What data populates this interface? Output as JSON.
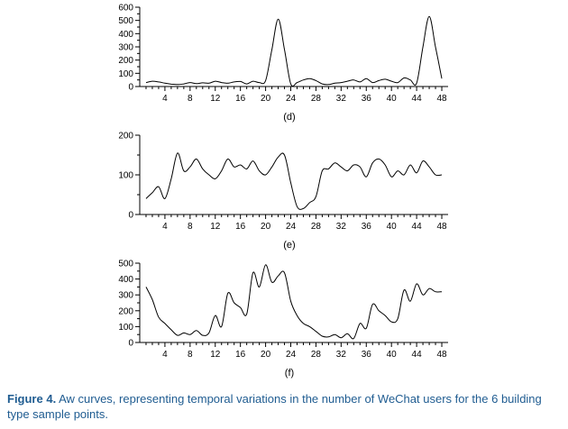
{
  "chart_data": [
    {
      "type": "line",
      "panel_label": "(d)",
      "x_ticks": [
        4,
        8,
        12,
        16,
        20,
        24,
        28,
        32,
        36,
        40,
        44,
        48
      ],
      "y_ticks": [
        0,
        100,
        200,
        300,
        400,
        500,
        600
      ],
      "xlim": [
        0,
        49
      ],
      "ylim": [
        0,
        600
      ],
      "x": [
        1,
        2,
        3,
        4,
        5,
        6,
        7,
        8,
        9,
        10,
        11,
        12,
        13,
        14,
        15,
        16,
        17,
        18,
        19,
        20,
        21,
        22,
        23,
        24,
        25,
        26,
        27,
        28,
        29,
        30,
        31,
        32,
        33,
        34,
        35,
        36,
        37,
        38,
        39,
        40,
        41,
        42,
        43,
        44,
        45,
        46,
        47,
        48
      ],
      "y": [
        30,
        40,
        35,
        25,
        18,
        15,
        20,
        30,
        22,
        28,
        25,
        40,
        30,
        25,
        35,
        38,
        20,
        40,
        30,
        45,
        280,
        510,
        280,
        20,
        30,
        50,
        60,
        45,
        20,
        15,
        25,
        30,
        40,
        50,
        35,
        60,
        30,
        45,
        55,
        40,
        30,
        65,
        50,
        25,
        300,
        530,
        300,
        60
      ]
    },
    {
      "type": "line",
      "panel_label": "(e)",
      "x_ticks": [
        4,
        8,
        12,
        16,
        20,
        24,
        28,
        32,
        36,
        40,
        44,
        48
      ],
      "y_ticks": [
        0,
        100,
        200
      ],
      "xlim": [
        0,
        49
      ],
      "ylim": [
        0,
        200
      ],
      "x": [
        1,
        2,
        3,
        4,
        5,
        6,
        7,
        8,
        9,
        10,
        11,
        12,
        13,
        14,
        15,
        16,
        17,
        18,
        19,
        20,
        21,
        22,
        23,
        24,
        25,
        26,
        27,
        28,
        29,
        30,
        31,
        32,
        33,
        34,
        35,
        36,
        37,
        38,
        39,
        40,
        41,
        42,
        43,
        44,
        45,
        46,
        47,
        48
      ],
      "y": [
        40,
        55,
        70,
        40,
        90,
        155,
        110,
        120,
        140,
        115,
        100,
        90,
        110,
        140,
        120,
        125,
        115,
        135,
        110,
        100,
        120,
        145,
        150,
        80,
        20,
        15,
        30,
        45,
        110,
        115,
        130,
        120,
        110,
        125,
        120,
        95,
        130,
        140,
        125,
        95,
        110,
        100,
        125,
        105,
        135,
        120,
        100,
        100
      ]
    },
    {
      "type": "line",
      "panel_label": "(f)",
      "x_ticks": [
        4,
        8,
        12,
        16,
        20,
        24,
        28,
        32,
        36,
        40,
        44,
        48
      ],
      "y_ticks": [
        0,
        100,
        200,
        300,
        400,
        500
      ],
      "xlim": [
        0,
        49
      ],
      "ylim": [
        0,
        500
      ],
      "x": [
        1,
        2,
        3,
        4,
        5,
        6,
        7,
        8,
        9,
        10,
        11,
        12,
        13,
        14,
        15,
        16,
        17,
        18,
        19,
        20,
        21,
        22,
        23,
        24,
        25,
        26,
        27,
        28,
        29,
        30,
        31,
        32,
        33,
        34,
        35,
        36,
        37,
        38,
        39,
        40,
        41,
        42,
        43,
        44,
        45,
        46,
        47,
        48
      ],
      "y": [
        350,
        270,
        160,
        120,
        80,
        45,
        60,
        50,
        75,
        45,
        60,
        170,
        100,
        310,
        250,
        220,
        180,
        440,
        350,
        490,
        380,
        420,
        440,
        260,
        170,
        120,
        100,
        70,
        40,
        35,
        50,
        30,
        55,
        25,
        120,
        90,
        240,
        200,
        170,
        130,
        150,
        330,
        260,
        370,
        300,
        340,
        320,
        320
      ]
    }
  ],
  "caption": {
    "label": "Figure 4.",
    "text": " Aw curves, representing temporal variations in the number of WeChat users for the 6 building type sample points."
  }
}
